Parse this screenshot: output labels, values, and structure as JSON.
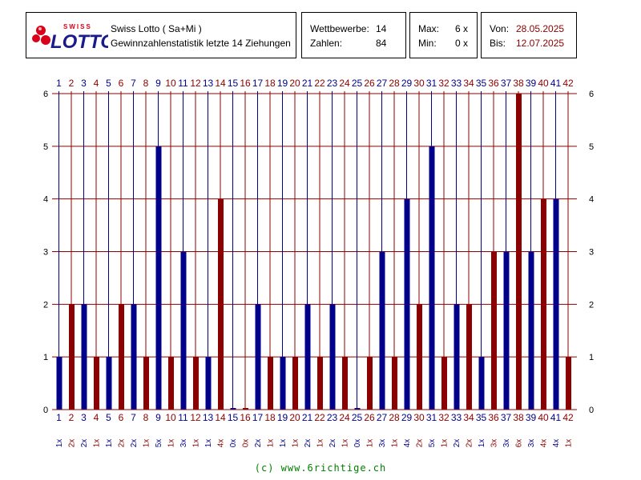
{
  "header": {
    "title": "Swiss Lotto ( Sa+Mi )",
    "subtitle": "Gewinnzahlenstatistik letzte 14 Ziehungen",
    "logo_text_top": "SWISS",
    "logo_text_main": "LOTTO",
    "competitions_label": "Wettbewerbe:",
    "competitions_value": "14",
    "numbers_label": "Zahlen:",
    "numbers_value": "84",
    "max_label": "Max:",
    "max_value": "6 x",
    "min_label": "Min:",
    "min_value": "0 x",
    "from_label": "Von:",
    "from_value": "28.05.2025",
    "to_label": "Bis:",
    "to_value": "12.07.2025"
  },
  "colors": {
    "blue": "#00008b",
    "red": "#8b0000",
    "grid": "#8b0000",
    "footer": "#008000"
  },
  "chart_data": {
    "type": "bar",
    "categories": [
      "1",
      "2",
      "3",
      "4",
      "5",
      "6",
      "7",
      "8",
      "9",
      "10",
      "11",
      "12",
      "13",
      "14",
      "15",
      "16",
      "17",
      "18",
      "19",
      "20",
      "21",
      "22",
      "23",
      "24",
      "25",
      "26",
      "27",
      "28",
      "29",
      "30",
      "31",
      "32",
      "33",
      "34",
      "35",
      "36",
      "37",
      "38",
      "39",
      "40",
      "41",
      "42"
    ],
    "values": [
      1,
      2,
      2,
      1,
      1,
      2,
      2,
      1,
      5,
      1,
      3,
      1,
      1,
      4,
      0,
      0,
      2,
      1,
      1,
      1,
      2,
      1,
      2,
      1,
      0,
      1,
      3,
      1,
      4,
      2,
      5,
      1,
      2,
      2,
      1,
      3,
      3,
      6,
      3,
      4,
      4,
      1
    ],
    "count_labels": [
      "1x",
      "2x",
      "2x",
      "1x",
      "1x",
      "2x",
      "2x",
      "1x",
      "5x",
      "1x",
      "3x",
      "1x",
      "1x",
      "4x",
      "0x",
      "0x",
      "2x",
      "1x",
      "1x",
      "1x",
      "2x",
      "1x",
      "2x",
      "1x",
      "0x",
      "1x",
      "3x",
      "1x",
      "4x",
      "2x",
      "5x",
      "1x",
      "2x",
      "2x",
      "1x",
      "3x",
      "3x",
      "6x",
      "3x",
      "4x",
      "4x",
      "1x"
    ],
    "ylim": [
      0,
      6
    ],
    "yticks": [
      "0",
      "1",
      "2",
      "3",
      "4",
      "5",
      "6"
    ],
    "grid": true
  },
  "footer": "(c) www.6richtige.ch"
}
